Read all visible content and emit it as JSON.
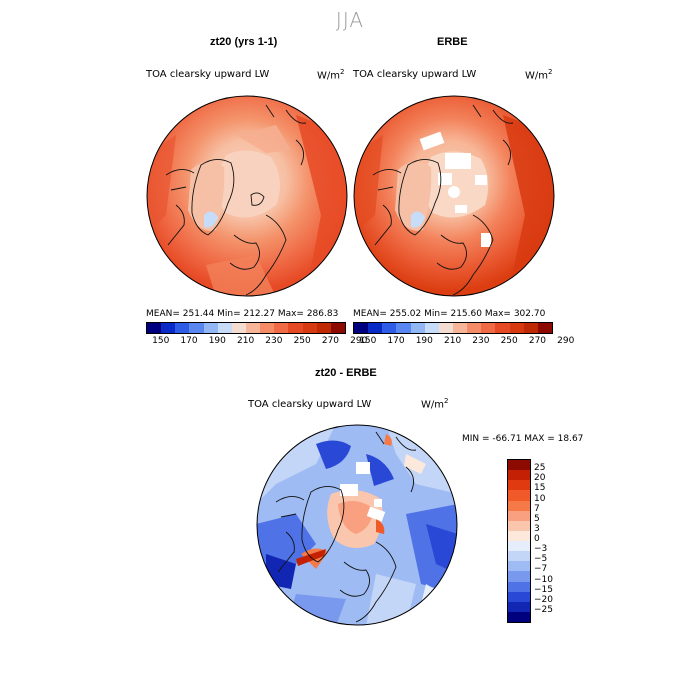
{
  "figure": {
    "season": "JJA"
  },
  "panels": [
    {
      "title": "zt20 (yrs 1-1)",
      "subtitle": "TOA clearsky upward LW",
      "unit": "W/m",
      "unit_sup": "2",
      "stats": "MEAN= 251.44   Min= 212.27   Max= 286.83"
    },
    {
      "title": "ERBE",
      "subtitle": "TOA clearsky upward LW",
      "unit": "W/m",
      "unit_sup": "2",
      "stats": "MEAN= 255.02   Min= 215.60   Max= 302.70"
    },
    {
      "title": "zt20 - ERBE",
      "subtitle": "TOA clearsky upward LW",
      "unit": "W/m",
      "unit_sup": "2",
      "stats": "MIN = -66.71  MAX =  18.67"
    }
  ],
  "colorbar_abs": {
    "labels": [
      "150",
      "170",
      "190",
      "210",
      "230",
      "250",
      "270",
      "290"
    ],
    "colors": [
      "#00007f",
      "#0a2ac8",
      "#2f5ce6",
      "#5a86f0",
      "#93b6f5",
      "#c7dcf8",
      "#f3dcd0",
      "#f7b69a",
      "#f48c68",
      "#ef6a45",
      "#e64a25",
      "#d83a10",
      "#bf2a05",
      "#8c0a00"
    ]
  },
  "colorbar_diff": {
    "labels": [
      "25",
      "20",
      "15",
      "10",
      "7",
      "5",
      "3",
      "0",
      "−3",
      "−5",
      "−7",
      "−10",
      "−15",
      "−20",
      "−25"
    ],
    "colors": [
      "#8c0a00",
      "#c42004",
      "#e03a10",
      "#f05a28",
      "#f57a48",
      "#f8a080",
      "#fbc6ae",
      "#fde8dc",
      "#e6eefb",
      "#c4d6f7",
      "#9ebbf3",
      "#7899ee",
      "#4f72e6",
      "#2a48d6",
      "#1226b4",
      "#00007f"
    ]
  }
}
